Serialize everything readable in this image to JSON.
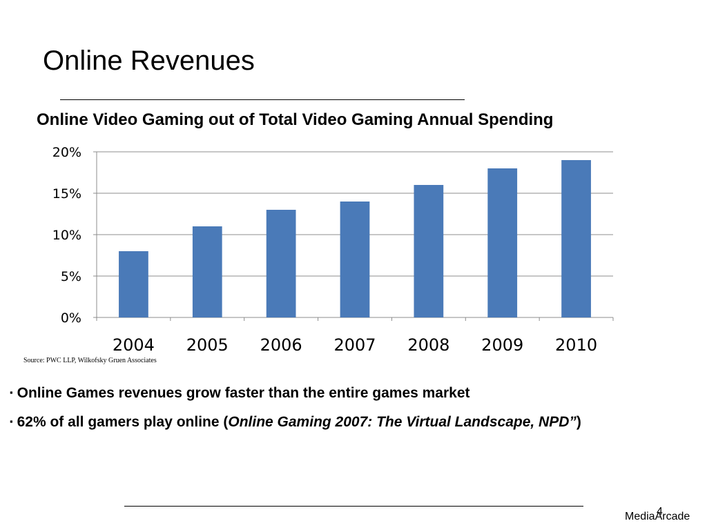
{
  "slide": {
    "title": "Online Revenues",
    "page_number": "4",
    "brand": "MediaArcade"
  },
  "chart_data": {
    "type": "bar",
    "title": "Online Video Gaming out of Total Video Gaming Annual Spending",
    "categories": [
      "2004",
      "2005",
      "2006",
      "2007",
      "2008",
      "2009",
      "2010"
    ],
    "values": [
      8,
      11,
      13,
      14,
      16,
      18,
      19
    ],
    "y_tick_labels": [
      "0%",
      "5%",
      "10%",
      "15%",
      "20%"
    ],
    "y_ticks": [
      0,
      5,
      10,
      15,
      20
    ],
    "ylim": [
      0,
      20
    ],
    "xlabel": "",
    "ylabel": "",
    "grid": true,
    "legend": "none",
    "bar_color": "#4a7ab8",
    "grid_color": "#8c8c8c",
    "source": "Source: PWC LLP, Wilkofsky Gruen Associates"
  },
  "bullets": {
    "mark": "▪",
    "item1": "Online Games revenues grow faster than the entire games market",
    "item2_prefix": "62% of all gamers play online (",
    "item2_italic": "Online Gaming 2007: The Virtual Landscape, NPD”",
    "item2_suffix": ")"
  }
}
